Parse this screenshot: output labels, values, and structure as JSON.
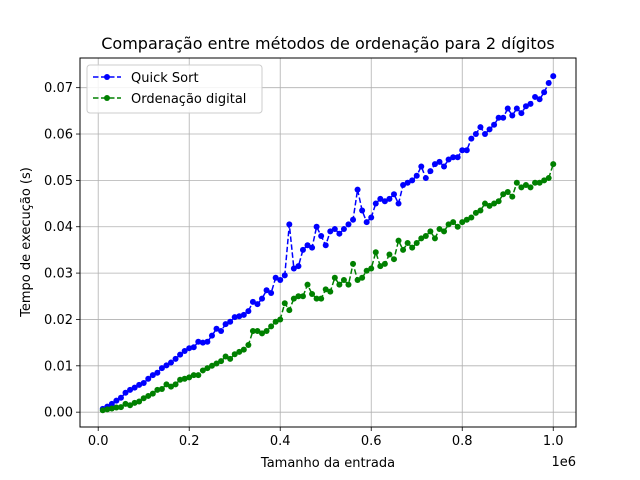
{
  "chart_data": {
    "type": "line",
    "title": "Comparação entre métodos de ordenação para 2 dígitos",
    "xlabel": "Tamanho da entrada",
    "ylabel": "Tempo de execução (s)",
    "x_multiplier_label": "1e6",
    "xlim": [
      -0.04,
      1.05
    ],
    "ylim": [
      -0.0032,
      0.0764
    ],
    "xticks": [
      0.0,
      0.2,
      0.4,
      0.6,
      0.8,
      1.0
    ],
    "xtick_labels": [
      "0.0",
      "0.2",
      "0.4",
      "0.6",
      "0.8",
      "1.0"
    ],
    "yticks": [
      0.0,
      0.01,
      0.02,
      0.03,
      0.04,
      0.05,
      0.06,
      0.07
    ],
    "ytick_labels": [
      "0.00",
      "0.01",
      "0.02",
      "0.03",
      "0.04",
      "0.05",
      "0.06",
      "0.07"
    ],
    "grid": true,
    "legend_position": "upper-left",
    "x": [
      0.01,
      0.02,
      0.03,
      0.04,
      0.05,
      0.06,
      0.07,
      0.08,
      0.09,
      0.1,
      0.11,
      0.12,
      0.13,
      0.14,
      0.15,
      0.16,
      0.17,
      0.18,
      0.19,
      0.2,
      0.21,
      0.22,
      0.23,
      0.24,
      0.25,
      0.26,
      0.27,
      0.28,
      0.29,
      0.3,
      0.31,
      0.32,
      0.33,
      0.34,
      0.35,
      0.36,
      0.37,
      0.38,
      0.39,
      0.4,
      0.41,
      0.42,
      0.43,
      0.44,
      0.45,
      0.46,
      0.47,
      0.48,
      0.49,
      0.5,
      0.51,
      0.52,
      0.53,
      0.54,
      0.55,
      0.56,
      0.57,
      0.58,
      0.59,
      0.6,
      0.61,
      0.62,
      0.63,
      0.64,
      0.65,
      0.66,
      0.67,
      0.68,
      0.69,
      0.7,
      0.71,
      0.72,
      0.73,
      0.74,
      0.75,
      0.76,
      0.77,
      0.78,
      0.79,
      0.8,
      0.81,
      0.82,
      0.83,
      0.84,
      0.85,
      0.86,
      0.87,
      0.88,
      0.89,
      0.9,
      0.91,
      0.92,
      0.93,
      0.94,
      0.95,
      0.96,
      0.97,
      0.98,
      0.99,
      1.0
    ],
    "series": [
      {
        "name": "Quick Sort",
        "color": "#0000ff",
        "values": [
          0.0007,
          0.0012,
          0.0018,
          0.0025,
          0.0031,
          0.0042,
          0.0048,
          0.0053,
          0.0059,
          0.0063,
          0.0072,
          0.008,
          0.0085,
          0.0095,
          0.0101,
          0.0107,
          0.0115,
          0.0124,
          0.0132,
          0.0138,
          0.014,
          0.0152,
          0.015,
          0.0152,
          0.0165,
          0.018,
          0.0175,
          0.019,
          0.0195,
          0.0205,
          0.0207,
          0.021,
          0.0218,
          0.0238,
          0.0233,
          0.0245,
          0.0263,
          0.0257,
          0.029,
          0.0285,
          0.0295,
          0.0405,
          0.031,
          0.0315,
          0.035,
          0.036,
          0.0355,
          0.04,
          0.038,
          0.036,
          0.039,
          0.0395,
          0.0385,
          0.0395,
          0.0405,
          0.0415,
          0.048,
          0.0435,
          0.041,
          0.042,
          0.045,
          0.046,
          0.0455,
          0.046,
          0.047,
          0.045,
          0.049,
          0.0495,
          0.05,
          0.051,
          0.053,
          0.0505,
          0.052,
          0.0535,
          0.054,
          0.053,
          0.0545,
          0.055,
          0.055,
          0.0565,
          0.0565,
          0.059,
          0.06,
          0.0615,
          0.06,
          0.061,
          0.062,
          0.0635,
          0.0635,
          0.0655,
          0.064,
          0.0655,
          0.0645,
          0.066,
          0.0665,
          0.068,
          0.0675,
          0.069,
          0.071,
          0.0725
        ]
      },
      {
        "name": "Ordenação digital",
        "color": "#008000",
        "values": [
          0.0004,
          0.0006,
          0.0008,
          0.001,
          0.0011,
          0.0018,
          0.0015,
          0.002,
          0.0023,
          0.003,
          0.0035,
          0.004,
          0.0048,
          0.005,
          0.006,
          0.0055,
          0.006,
          0.007,
          0.0072,
          0.0075,
          0.008,
          0.008,
          0.009,
          0.0095,
          0.01,
          0.0105,
          0.011,
          0.012,
          0.0115,
          0.0125,
          0.013,
          0.0135,
          0.0145,
          0.0175,
          0.0175,
          0.017,
          0.0175,
          0.0185,
          0.0195,
          0.02,
          0.0235,
          0.022,
          0.0245,
          0.025,
          0.025,
          0.0275,
          0.0255,
          0.0245,
          0.0245,
          0.0265,
          0.026,
          0.029,
          0.0275,
          0.0285,
          0.0275,
          0.032,
          0.0285,
          0.029,
          0.0305,
          0.031,
          0.0345,
          0.0315,
          0.032,
          0.034,
          0.033,
          0.037,
          0.035,
          0.0365,
          0.0355,
          0.0365,
          0.0375,
          0.038,
          0.039,
          0.0375,
          0.0395,
          0.039,
          0.0405,
          0.041,
          0.04,
          0.041,
          0.0415,
          0.042,
          0.043,
          0.0435,
          0.045,
          0.0445,
          0.045,
          0.0455,
          0.047,
          0.0475,
          0.0465,
          0.0495,
          0.0485,
          0.049,
          0.0485,
          0.0495,
          0.0495,
          0.05,
          0.0505,
          0.0535
        ]
      }
    ]
  }
}
